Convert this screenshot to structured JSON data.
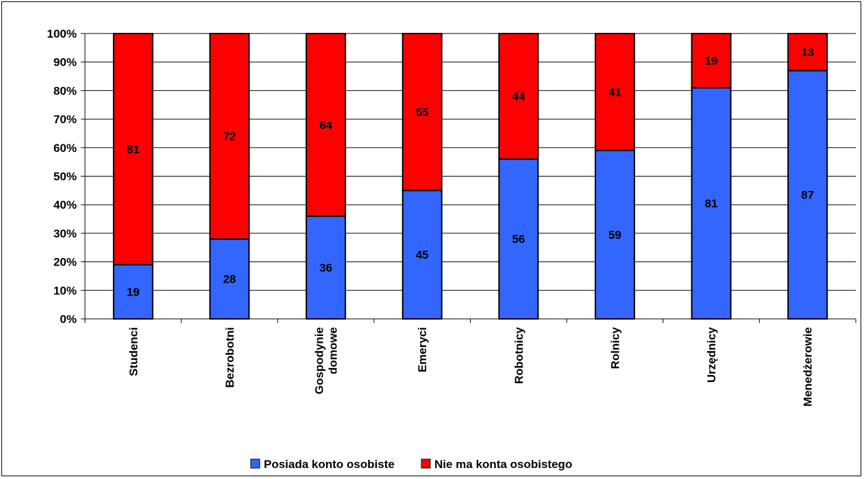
{
  "chart_data": {
    "type": "bar",
    "stacked": true,
    "normalized": true,
    "categories": [
      "Studenci",
      "Bezrobotni",
      "Gospodynie domowe",
      "Emeryci",
      "Robotnicy",
      "Rolnicy",
      "Urzędnicy",
      "Menedżerowie"
    ],
    "category_lines": [
      [
        "Studenci"
      ],
      [
        "Bezrobotni"
      ],
      [
        "Gospodynie",
        "domowe"
      ],
      [
        "Emeryci"
      ],
      [
        "Robotnicy"
      ],
      [
        "Rolnicy"
      ],
      [
        "Urzędnicy"
      ],
      [
        "Menedżerowie"
      ]
    ],
    "series": [
      {
        "name": "Posiada konto osobiste",
        "values": [
          19,
          28,
          36,
          45,
          56,
          59,
          81,
          87
        ],
        "color": "#3366ff"
      },
      {
        "name": "Nie ma konta osobistego",
        "values": [
          81,
          72,
          64,
          55,
          44,
          41,
          19,
          13
        ],
        "color": "#ff0000"
      }
    ],
    "ylim": [
      0,
      100
    ],
    "yticks": [
      "0%",
      "10%",
      "20%",
      "30%",
      "40%",
      "50%",
      "60%",
      "70%",
      "80%",
      "90%",
      "100%"
    ],
    "grid": true,
    "legend_position": "bottom",
    "data_labels": true
  }
}
